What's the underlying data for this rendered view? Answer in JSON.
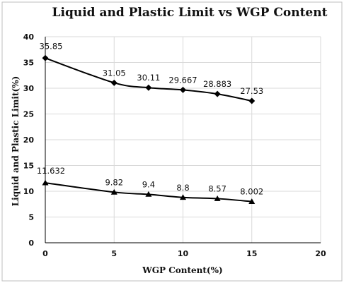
{
  "chart_data": {
    "type": "line",
    "title": "Liquid and Plastic Limit vs WGP Content",
    "xlabel": "WGP Content(%)",
    "ylabel": "Liquid and Plastic Limit(%)",
    "xlim": [
      0,
      20
    ],
    "ylim": [
      0,
      40
    ],
    "xticks": [
      0,
      5,
      10,
      15,
      20
    ],
    "yticks": [
      0,
      5,
      10,
      15,
      20,
      25,
      30,
      35,
      40
    ],
    "grid": false,
    "legend": "none",
    "series": [
      {
        "marker": "diamond",
        "color": "#000000",
        "x": [
          0,
          5,
          7.5,
          10,
          12.5,
          15
        ],
        "y": [
          35.85,
          31.05,
          30.11,
          29.667,
          28.883,
          27.53
        ],
        "labels": [
          "35.85",
          "31.05",
          "30.11",
          "29.667",
          "28.883",
          "27.53"
        ]
      },
      {
        "marker": "triangle",
        "color": "#000000",
        "x": [
          0,
          5,
          7.5,
          10,
          12.5,
          15
        ],
        "y": [
          11.632,
          9.82,
          9.4,
          8.8,
          8.57,
          8.002
        ],
        "labels": [
          "11.632",
          "9.82",
          "9.4",
          "8.8",
          "8.57",
          "8.002"
        ]
      }
    ]
  }
}
